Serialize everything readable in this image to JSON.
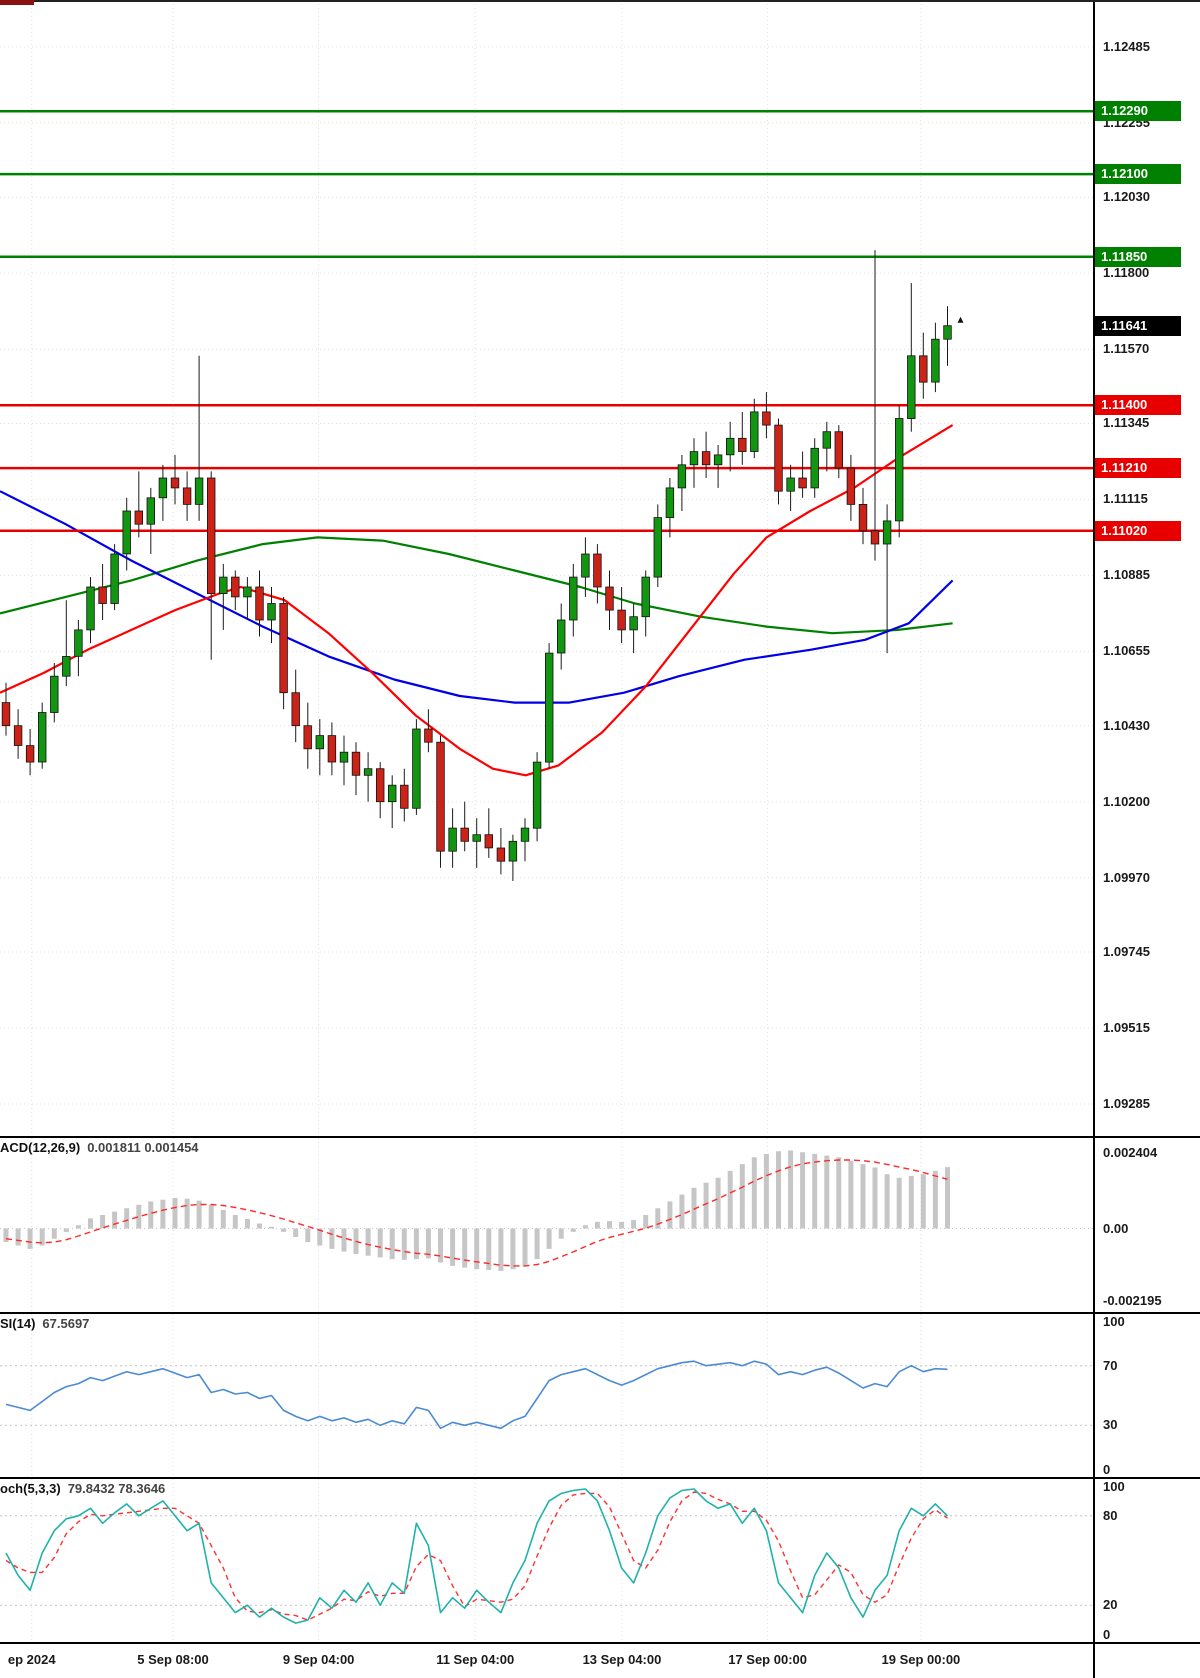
{
  "colors": {
    "background": "#ffffff",
    "grid": "#e0e0e0",
    "bull": "#129612",
    "bear": "#cc2318",
    "wick": "#1a1a1a",
    "candle_outline": "#111111",
    "resistance_green": "#008000",
    "support_red": "#e80000",
    "current_price_black": "#000000",
    "ma_blue": "#0000e8",
    "ma_green": "#008000",
    "ma_red": "#ff0000",
    "macd_histogram": "#c6c6c6",
    "macd_signal": "#ff2a2a",
    "rsi_line": "#4b8bd4",
    "stoch_k": "#20b2aa",
    "stoch_d": "#ff3030",
    "axis_text": "#1a1a1a"
  },
  "chart_data": {
    "type": "candlestick",
    "price_axis": {
      "ticks": [
        "1.12485",
        "1.12255",
        "1.12030",
        "1.11800",
        "1.11570",
        "1.11345",
        "1.11115",
        "1.10885",
        "1.10655",
        "1.10430",
        "1.10200",
        "1.09970",
        "1.09745",
        "1.09515",
        "1.09285"
      ],
      "min": 1.09188,
      "max": 1.12627
    },
    "time_axis": [
      {
        "label": "ep 2024",
        "x": 0.029
      },
      {
        "label": "5 Sep 08:00",
        "x": 0.158
      },
      {
        "label": "9 Sep 04:00",
        "x": 0.291
      },
      {
        "label": "11 Sep 04:00",
        "x": 0.434
      },
      {
        "label": "13 Sep 04:00",
        "x": 0.568
      },
      {
        "label": "17 Sep 00:00",
        "x": 0.701
      },
      {
        "label": "19 Sep 00:00",
        "x": 0.841
      }
    ],
    "levels": [
      {
        "label": "1.12290",
        "value": 1.1229,
        "kind": "resistance",
        "color": "#008000"
      },
      {
        "label": "1.12100",
        "value": 1.121,
        "kind": "resistance",
        "color": "#008000"
      },
      {
        "label": "1.11850",
        "value": 1.1185,
        "kind": "resistance",
        "color": "#008000"
      },
      {
        "label": "1.11400",
        "value": 1.114,
        "kind": "support",
        "color": "#e80000"
      },
      {
        "label": "1.11210",
        "value": 1.1121,
        "kind": "support",
        "color": "#e80000"
      },
      {
        "label": "1.11020",
        "value": 1.1102,
        "kind": "support",
        "color": "#e80000"
      }
    ],
    "current_price": {
      "label": "1.11641",
      "value": 1.11641
    },
    "candles": [
      [
        1.105,
        1.1056,
        1.104,
        1.1043
      ],
      [
        1.1043,
        1.1048,
        1.1033,
        1.1037
      ],
      [
        1.1037,
        1.1042,
        1.1028,
        1.1032
      ],
      [
        1.1032,
        1.105,
        1.103,
        1.1047
      ],
      [
        1.1047,
        1.1062,
        1.1044,
        1.1058
      ],
      [
        1.1058,
        1.1081,
        1.1055,
        1.1064
      ],
      [
        1.1064,
        1.1075,
        1.1058,
        1.1072
      ],
      [
        1.1072,
        1.1088,
        1.1068,
        1.1085
      ],
      [
        1.1085,
        1.1092,
        1.1075,
        1.108
      ],
      [
        1.108,
        1.1098,
        1.1078,
        1.1095
      ],
      [
        1.1095,
        1.1112,
        1.109,
        1.1108
      ],
      [
        1.1108,
        1.112,
        1.11,
        1.1104
      ],
      [
        1.1104,
        1.1115,
        1.1095,
        1.1112
      ],
      [
        1.1112,
        1.1122,
        1.1105,
        1.1118
      ],
      [
        1.1118,
        1.1125,
        1.111,
        1.1115
      ],
      [
        1.1115,
        1.112,
        1.1105,
        1.111
      ],
      [
        1.111,
        1.1155,
        1.1105,
        1.1118
      ],
      [
        1.1118,
        1.112,
        1.1063,
        1.1083
      ],
      [
        1.1083,
        1.1092,
        1.1072,
        1.1088
      ],
      [
        1.1088,
        1.109,
        1.1078,
        1.1082
      ],
      [
        1.1082,
        1.1088,
        1.1075,
        1.1085
      ],
      [
        1.1085,
        1.109,
        1.107,
        1.1075
      ],
      [
        1.1075,
        1.1085,
        1.1068,
        1.108
      ],
      [
        1.108,
        1.1082,
        1.1048,
        1.1053
      ],
      [
        1.1053,
        1.106,
        1.1038,
        1.1043
      ],
      [
        1.1043,
        1.105,
        1.103,
        1.1036
      ],
      [
        1.1036,
        1.1045,
        1.1028,
        1.104
      ],
      [
        1.104,
        1.1044,
        1.1028,
        1.1032
      ],
      [
        1.1032,
        1.104,
        1.1025,
        1.1035
      ],
      [
        1.1035,
        1.1038,
        1.1022,
        1.1028
      ],
      [
        1.1028,
        1.1035,
        1.102,
        1.103
      ],
      [
        1.103,
        1.1032,
        1.1015,
        1.102
      ],
      [
        1.102,
        1.1028,
        1.1012,
        1.1025
      ],
      [
        1.1025,
        1.103,
        1.1014,
        1.1018
      ],
      [
        1.1018,
        1.1045,
        1.1016,
        1.1042
      ],
      [
        1.1042,
        1.1048,
        1.1035,
        1.1038
      ],
      [
        1.1038,
        1.104,
        1.1,
        1.1005
      ],
      [
        1.1005,
        1.1018,
        1.1,
        1.1012
      ],
      [
        1.1012,
        1.102,
        1.1005,
        1.1008
      ],
      [
        1.1008,
        1.1015,
        1.1,
        1.101
      ],
      [
        1.101,
        1.1018,
        1.1003,
        1.1006
      ],
      [
        1.1006,
        1.1012,
        1.0998,
        1.1002
      ],
      [
        1.1002,
        1.101,
        1.0996,
        1.1008
      ],
      [
        1.1008,
        1.1015,
        1.1002,
        1.1012
      ],
      [
        1.1012,
        1.1035,
        1.1008,
        1.1032
      ],
      [
        1.1032,
        1.1068,
        1.103,
        1.1065
      ],
      [
        1.1065,
        1.108,
        1.106,
        1.1075
      ],
      [
        1.1075,
        1.1092,
        1.107,
        1.1088
      ],
      [
        1.1088,
        1.11,
        1.1082,
        1.1095
      ],
      [
        1.1095,
        1.1098,
        1.108,
        1.1085
      ],
      [
        1.1085,
        1.109,
        1.1072,
        1.1078
      ],
      [
        1.1078,
        1.1085,
        1.1068,
        1.1072
      ],
      [
        1.1072,
        1.108,
        1.1065,
        1.1076
      ],
      [
        1.1076,
        1.109,
        1.107,
        1.1088
      ],
      [
        1.1088,
        1.111,
        1.1085,
        1.1106
      ],
      [
        1.1106,
        1.1118,
        1.11,
        1.1115
      ],
      [
        1.1115,
        1.1125,
        1.1108,
        1.1122
      ],
      [
        1.1122,
        1.113,
        1.1115,
        1.1126
      ],
      [
        1.1126,
        1.1132,
        1.1118,
        1.1122
      ],
      [
        1.1122,
        1.1128,
        1.1115,
        1.1125
      ],
      [
        1.1125,
        1.1135,
        1.112,
        1.113
      ],
      [
        1.113,
        1.1138,
        1.1122,
        1.1126
      ],
      [
        1.1126,
        1.1142,
        1.1124,
        1.1138
      ],
      [
        1.1138,
        1.1144,
        1.113,
        1.1134
      ],
      [
        1.1134,
        1.1136,
        1.111,
        1.1114
      ],
      [
        1.1114,
        1.1122,
        1.1108,
        1.1118
      ],
      [
        1.1118,
        1.1126,
        1.1112,
        1.1115
      ],
      [
        1.1115,
        1.113,
        1.1112,
        1.1127
      ],
      [
        1.1127,
        1.1135,
        1.112,
        1.1132
      ],
      [
        1.1132,
        1.1134,
        1.1118,
        1.1121
      ],
      [
        1.1121,
        1.1125,
        1.1105,
        1.111
      ],
      [
        1.111,
        1.1115,
        1.1098,
        1.1102
      ],
      [
        1.1102,
        1.1187,
        1.1093,
        1.1098
      ],
      [
        1.1098,
        1.111,
        1.1065,
        1.1105
      ],
      [
        1.1105,
        1.114,
        1.11,
        1.1136
      ],
      [
        1.1136,
        1.1177,
        1.1132,
        1.1155
      ],
      [
        1.1155,
        1.1162,
        1.1142,
        1.1147
      ],
      [
        1.1147,
        1.1165,
        1.1144,
        1.116
      ],
      [
        1.116,
        1.117,
        1.1152,
        1.11641
      ]
    ],
    "moving_averages": {
      "blue": [
        [
          0,
          1.1114
        ],
        [
          0.06,
          1.1104
        ],
        [
          0.12,
          1.1093
        ],
        [
          0.18,
          1.1083
        ],
        [
          0.24,
          1.1073
        ],
        [
          0.3,
          1.1064
        ],
        [
          0.36,
          1.1057
        ],
        [
          0.42,
          1.1052
        ],
        [
          0.47,
          1.105
        ],
        [
          0.52,
          1.105
        ],
        [
          0.57,
          1.1053
        ],
        [
          0.62,
          1.1058
        ],
        [
          0.68,
          1.1063
        ],
        [
          0.74,
          1.1066
        ],
        [
          0.79,
          1.1069
        ],
        [
          0.83,
          1.1074
        ],
        [
          0.87,
          1.1087
        ]
      ],
      "green": [
        [
          0,
          1.1077
        ],
        [
          0.06,
          1.1082
        ],
        [
          0.12,
          1.1087
        ],
        [
          0.18,
          1.1093
        ],
        [
          0.24,
          1.1098
        ],
        [
          0.29,
          1.11
        ],
        [
          0.35,
          1.1099
        ],
        [
          0.41,
          1.1095
        ],
        [
          0.47,
          1.109
        ],
        [
          0.53,
          1.1085
        ],
        [
          0.58,
          1.108
        ],
        [
          0.64,
          1.1076
        ],
        [
          0.7,
          1.1073
        ],
        [
          0.76,
          1.1071
        ],
        [
          0.82,
          1.1072
        ],
        [
          0.87,
          1.1074
        ]
      ],
      "red": [
        [
          0,
          1.1053
        ],
        [
          0.04,
          1.1059
        ],
        [
          0.08,
          1.1066
        ],
        [
          0.12,
          1.1072
        ],
        [
          0.16,
          1.1078
        ],
        [
          0.2,
          1.1083
        ],
        [
          0.22,
          1.1085
        ],
        [
          0.26,
          1.1081
        ],
        [
          0.3,
          1.1071
        ],
        [
          0.34,
          1.1059
        ],
        [
          0.38,
          1.1046
        ],
        [
          0.42,
          1.1036
        ],
        [
          0.45,
          1.103
        ],
        [
          0.48,
          1.1028
        ],
        [
          0.51,
          1.1031
        ],
        [
          0.55,
          1.1041
        ],
        [
          0.59,
          1.1055
        ],
        [
          0.63,
          1.1072
        ],
        [
          0.67,
          1.1089
        ],
        [
          0.7,
          1.11
        ],
        [
          0.74,
          1.1108
        ],
        [
          0.78,
          1.1115
        ],
        [
          0.82,
          1.1124
        ],
        [
          0.87,
          1.1134
        ]
      ]
    },
    "indicators": {
      "macd": {
        "name": "ACD(12,26,9)",
        "values": "0.001811 0.001454",
        "scale": {
          "top": "0.002404",
          "zero": "0.00",
          "bottom": "-0.002195"
        },
        "range": {
          "max": 0.002404,
          "min": -0.002195
        },
        "histogram": [
          -0.0004,
          -0.0005,
          -0.0006,
          -0.0005,
          -0.0003,
          -0.0001,
          0.0001,
          0.0003,
          0.0004,
          0.0005,
          0.0006,
          0.0007,
          0.0008,
          0.00085,
          0.0009,
          0.00088,
          0.00082,
          0.0007,
          0.00055,
          0.0004,
          0.00028,
          0.00015,
          5e-05,
          -0.0001,
          -0.00025,
          -0.0004,
          -0.0005,
          -0.0006,
          -0.00068,
          -0.00075,
          -0.0008,
          -0.00085,
          -0.0009,
          -0.00092,
          -0.0009,
          -0.00088,
          -0.001,
          -0.0011,
          -0.00115,
          -0.0012,
          -0.00122,
          -0.00125,
          -0.0012,
          -0.00112,
          -0.0009,
          -0.0006,
          -0.0003,
          -0.0001,
          0.0001,
          0.0002,
          0.00022,
          0.0002,
          0.00025,
          0.0004,
          0.0006,
          0.0008,
          0.001,
          0.0012,
          0.00135,
          0.0015,
          0.0017,
          0.0019,
          0.0021,
          0.0022,
          0.00228,
          0.0023,
          0.00225,
          0.0022,
          0.00215,
          0.0021,
          0.002,
          0.0019,
          0.0018,
          0.0016,
          0.0015,
          0.00155,
          0.0016,
          0.0017,
          0.001811
        ],
        "signal": [
          -0.0003,
          -0.00035,
          -0.0004,
          -0.00042,
          -0.0004,
          -0.00033,
          -0.00022,
          -0.0001,
          2e-05,
          0.00013,
          0.00024,
          0.00035,
          0.00045,
          0.00054,
          0.00062,
          0.00068,
          0.00071,
          0.00071,
          0.00068,
          0.00062,
          0.00055,
          0.00047,
          0.00038,
          0.00028,
          0.00017,
          6e-05,
          -5e-05,
          -0.00017,
          -0.00028,
          -0.00038,
          -0.00047,
          -0.00055,
          -0.00062,
          -0.00068,
          -0.00073,
          -0.00076,
          -0.00081,
          -0.00087,
          -0.00093,
          -0.00098,
          -0.00103,
          -0.00108,
          -0.0011,
          -0.0011,
          -0.00106,
          -0.00097,
          -0.00083,
          -0.00069,
          -0.00053,
          -0.00038,
          -0.00026,
          -0.00017,
          -8e-05,
          1e-05,
          0.00013,
          0.00027,
          0.00041,
          0.00057,
          0.00073,
          0.00088,
          0.00105,
          0.00122,
          0.0014,
          0.00156,
          0.0017,
          0.00182,
          0.00191,
          0.00196,
          0.002,
          0.00202,
          0.00202,
          0.002,
          0.00196,
          0.00189,
          0.00181,
          0.00174,
          0.00165,
          0.00155,
          0.001454
        ]
      },
      "rsi": {
        "name": "SI(14)",
        "values": "67.5697",
        "scale": [
          "100",
          "70",
          "30",
          "0"
        ],
        "guides": [
          70,
          30
        ],
        "line": [
          44,
          42,
          40,
          46,
          52,
          56,
          58,
          62,
          60,
          63,
          66,
          64,
          66,
          68,
          65,
          62,
          64,
          52,
          54,
          51,
          52,
          48,
          50,
          40,
          36,
          33,
          36,
          33,
          35,
          32,
          34,
          30,
          33,
          31,
          42,
          40,
          28,
          32,
          30,
          32,
          30,
          28,
          33,
          36,
          48,
          60,
          64,
          66,
          68,
          64,
          60,
          57,
          60,
          64,
          68,
          70,
          72,
          73,
          70,
          71,
          72,
          70,
          73,
          71,
          64,
          66,
          64,
          67,
          69,
          65,
          60,
          55,
          58,
          56,
          66,
          70,
          66,
          68,
          67.57
        ]
      },
      "stoch": {
        "name": "och(5,3,3)",
        "values": "79.8432 78.3646",
        "scale": [
          "100",
          "80",
          "20",
          "0"
        ],
        "guides": [
          80,
          20
        ],
        "k": [
          55,
          40,
          30,
          55,
          70,
          78,
          80,
          85,
          75,
          82,
          88,
          80,
          85,
          90,
          80,
          70,
          75,
          35,
          25,
          15,
          20,
          12,
          18,
          12,
          8,
          10,
          25,
          18,
          30,
          22,
          35,
          20,
          35,
          28,
          75,
          60,
          15,
          25,
          18,
          30,
          22,
          15,
          35,
          50,
          75,
          90,
          95,
          97,
          98,
          90,
          70,
          45,
          35,
          55,
          80,
          92,
          97,
          98,
          90,
          85,
          88,
          75,
          85,
          70,
          35,
          25,
          15,
          40,
          55,
          45,
          25,
          12,
          30,
          40,
          70,
          85,
          80,
          88,
          79.84
        ],
        "d": [
          50,
          45,
          42,
          42,
          52,
          68,
          76,
          81,
          80,
          81,
          82,
          83,
          84,
          85,
          85,
          80,
          75,
          60,
          45,
          25,
          16,
          15,
          17,
          14,
          13,
          10,
          14,
          18,
          24,
          23,
          29,
          26,
          28,
          28,
          46,
          54,
          50,
          33,
          19,
          24,
          23,
          22,
          24,
          33,
          53,
          72,
          87,
          94,
          95,
          95,
          86,
          68,
          50,
          45,
          57,
          76,
          90,
          96,
          95,
          91,
          88,
          83,
          83,
          77,
          63,
          43,
          25,
          27,
          37,
          47,
          42,
          27,
          22,
          27,
          47,
          65,
          78,
          84,
          78.36
        ]
      }
    }
  }
}
